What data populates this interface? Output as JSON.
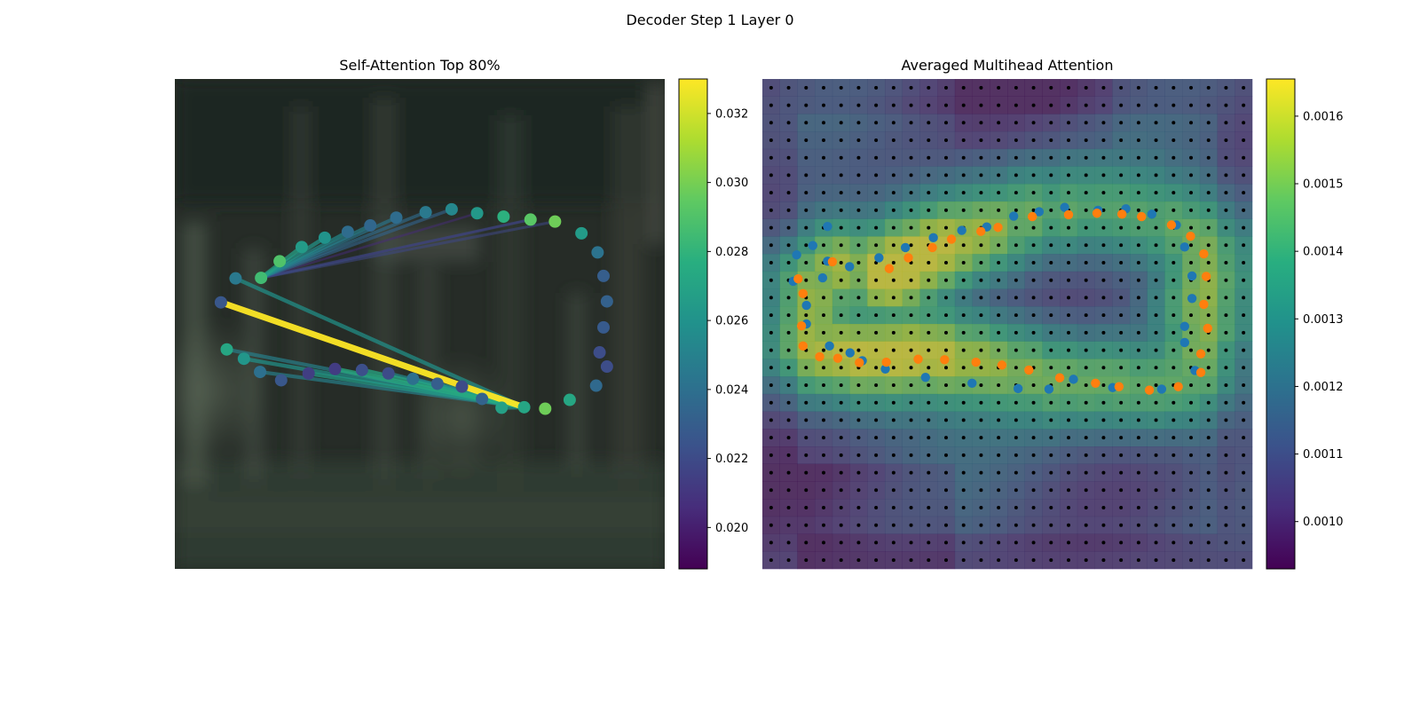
{
  "figure": {
    "title": "Decoder Step 1 Layer 0"
  },
  "chart_data": [
    {
      "type": "scatter",
      "title": "Self-Attention Top 80%",
      "background": "blurred dark photo (foliage / street scene)",
      "axes_visible": false,
      "colormap": "viridis",
      "colorbar": {
        "range": [
          0.0188,
          0.033
        ],
        "ticks": [
          0.02,
          0.022,
          0.024,
          0.026,
          0.028,
          0.03,
          0.032
        ],
        "tick_labels": [
          "0.020",
          "0.022",
          "0.024",
          "0.026",
          "0.028",
          "0.030",
          "0.032"
        ]
      },
      "points": [
        {
          "x": 0.124,
          "y": 0.407,
          "value": 0.0245
        },
        {
          "x": 0.094,
          "y": 0.456,
          "value": 0.0226
        },
        {
          "x": 0.106,
          "y": 0.552,
          "value": 0.0272
        },
        {
          "x": 0.141,
          "y": 0.571,
          "value": 0.0262
        },
        {
          "x": 0.174,
          "y": 0.598,
          "value": 0.024
        },
        {
          "x": 0.217,
          "y": 0.615,
          "value": 0.0226
        },
        {
          "x": 0.273,
          "y": 0.601,
          "value": 0.0214
        },
        {
          "x": 0.327,
          "y": 0.592,
          "value": 0.0213
        },
        {
          "x": 0.382,
          "y": 0.594,
          "value": 0.0222
        },
        {
          "x": 0.436,
          "y": 0.601,
          "value": 0.022
        },
        {
          "x": 0.486,
          "y": 0.612,
          "value": 0.024
        },
        {
          "x": 0.536,
          "y": 0.622,
          "value": 0.023
        },
        {
          "x": 0.586,
          "y": 0.628,
          "value": 0.022
        },
        {
          "x": 0.627,
          "y": 0.653,
          "value": 0.0233
        },
        {
          "x": 0.667,
          "y": 0.671,
          "value": 0.0268
        },
        {
          "x": 0.713,
          "y": 0.67,
          "value": 0.0271
        },
        {
          "x": 0.756,
          "y": 0.673,
          "value": 0.0298
        },
        {
          "x": 0.806,
          "y": 0.655,
          "value": 0.0272
        },
        {
          "x": 0.86,
          "y": 0.626,
          "value": 0.0236
        },
        {
          "x": 0.882,
          "y": 0.587,
          "value": 0.0221
        },
        {
          "x": 0.867,
          "y": 0.558,
          "value": 0.0221
        },
        {
          "x": 0.875,
          "y": 0.507,
          "value": 0.0228
        },
        {
          "x": 0.882,
          "y": 0.454,
          "value": 0.0232
        },
        {
          "x": 0.875,
          "y": 0.402,
          "value": 0.023
        },
        {
          "x": 0.863,
          "y": 0.354,
          "value": 0.0242
        },
        {
          "x": 0.83,
          "y": 0.315,
          "value": 0.0265
        },
        {
          "x": 0.776,
          "y": 0.291,
          "value": 0.0298
        },
        {
          "x": 0.726,
          "y": 0.287,
          "value": 0.0293
        },
        {
          "x": 0.671,
          "y": 0.281,
          "value": 0.0278
        },
        {
          "x": 0.617,
          "y": 0.274,
          "value": 0.0263
        },
        {
          "x": 0.565,
          "y": 0.266,
          "value": 0.0253
        },
        {
          "x": 0.512,
          "y": 0.272,
          "value": 0.0245
        },
        {
          "x": 0.452,
          "y": 0.283,
          "value": 0.0238
        },
        {
          "x": 0.399,
          "y": 0.299,
          "value": 0.0235
        },
        {
          "x": 0.353,
          "y": 0.312,
          "value": 0.0238
        },
        {
          "x": 0.306,
          "y": 0.324,
          "value": 0.026
        },
        {
          "x": 0.259,
          "y": 0.343,
          "value": 0.0265
        },
        {
          "x": 0.214,
          "y": 0.372,
          "value": 0.029
        },
        {
          "x": 0.176,
          "y": 0.406,
          "value": 0.0285
        }
      ],
      "edges": [
        {
          "from": 15,
          "to": 1,
          "value": 0.033
        },
        {
          "from": 15,
          "to": 0,
          "value": 0.026
        },
        {
          "from": 15,
          "to": 2,
          "value": 0.025
        },
        {
          "from": 15,
          "to": 3,
          "value": 0.026
        },
        {
          "from": 15,
          "to": 4,
          "value": 0.025
        },
        {
          "from": 15,
          "to": 6,
          "value": 0.0265
        },
        {
          "from": 15,
          "to": 7,
          "value": 0.0275
        },
        {
          "from": 15,
          "to": 8,
          "value": 0.0272
        },
        {
          "from": 15,
          "to": 9,
          "value": 0.0255
        },
        {
          "from": 15,
          "to": 10,
          "value": 0.0258
        },
        {
          "from": 15,
          "to": 11,
          "value": 0.0262
        },
        {
          "from": 15,
          "to": 12,
          "value": 0.0255
        },
        {
          "from": 15,
          "to": 13,
          "value": 0.0245
        },
        {
          "from": 15,
          "to": 14,
          "value": 0.0262
        },
        {
          "from": 38,
          "to": 36,
          "value": 0.0268
        },
        {
          "from": 38,
          "to": 35,
          "value": 0.0262
        },
        {
          "from": 38,
          "to": 34,
          "value": 0.0255
        },
        {
          "from": 38,
          "to": 33,
          "value": 0.025
        },
        {
          "from": 38,
          "to": 32,
          "value": 0.0244
        },
        {
          "from": 38,
          "to": 31,
          "value": 0.0238
        },
        {
          "from": 38,
          "to": 30,
          "value": 0.0233
        },
        {
          "from": 38,
          "to": 27,
          "value": 0.0222
        },
        {
          "from": 38,
          "to": 26,
          "value": 0.0218
        },
        {
          "from": 38,
          "to": 29,
          "value": 0.0205
        },
        {
          "from": 38,
          "to": 27,
          "value": 0.02
        }
      ]
    },
    {
      "type": "heatmap",
      "title": "Averaged Multihead Attention",
      "axes_visible": false,
      "colormap": "viridis",
      "grid": {
        "cols": 28,
        "rows": 28
      },
      "colorbar": {
        "range": [
          0.00093,
          0.001655
        ],
        "ticks": [
          0.001,
          0.0011,
          0.0012,
          0.0013,
          0.0014,
          0.0015,
          0.0016
        ],
        "tick_labels": [
          "0.0010",
          "0.0011",
          "0.0012",
          "0.0013",
          "0.0014",
          "0.0015",
          "0.0016"
        ]
      },
      "series": [
        {
          "color": "#1f77b4",
          "points": [
            [
              0.133,
              0.372
            ],
            [
              0.133,
              0.301
            ],
            [
              0.103,
              0.34
            ],
            [
              0.07,
              0.359
            ],
            [
              0.063,
              0.413
            ],
            [
              0.09,
              0.462
            ],
            [
              0.09,
              0.5
            ],
            [
              0.137,
              0.545
            ],
            [
              0.179,
              0.559
            ],
            [
              0.204,
              0.575
            ],
            [
              0.251,
              0.592
            ],
            [
              0.333,
              0.609
            ],
            [
              0.428,
              0.621
            ],
            [
              0.522,
              0.632
            ],
            [
              0.585,
              0.633
            ],
            [
              0.635,
              0.613
            ],
            [
              0.715,
              0.63
            ],
            [
              0.815,
              0.633
            ],
            [
              0.883,
              0.595
            ],
            [
              0.862,
              0.538
            ],
            [
              0.862,
              0.505
            ],
            [
              0.877,
              0.448
            ],
            [
              0.877,
              0.402
            ],
            [
              0.862,
              0.343
            ],
            [
              0.845,
              0.298
            ],
            [
              0.795,
              0.276
            ],
            [
              0.742,
              0.265
            ],
            [
              0.685,
              0.268
            ],
            [
              0.617,
              0.262
            ],
            [
              0.565,
              0.271
            ],
            [
              0.513,
              0.28
            ],
            [
              0.458,
              0.302
            ],
            [
              0.407,
              0.309
            ],
            [
              0.349,
              0.324
            ],
            [
              0.292,
              0.344
            ],
            [
              0.238,
              0.365
            ],
            [
              0.178,
              0.383
            ],
            [
              0.123,
              0.406
            ]
          ]
        },
        {
          "color": "#ff7f0e",
          "points": [
            [
              0.143,
              0.373
            ],
            [
              0.073,
              0.408
            ],
            [
              0.083,
              0.438
            ],
            [
              0.08,
              0.504
            ],
            [
              0.083,
              0.545
            ],
            [
              0.117,
              0.567
            ],
            [
              0.154,
              0.57
            ],
            [
              0.198,
              0.579
            ],
            [
              0.253,
              0.578
            ],
            [
              0.318,
              0.572
            ],
            [
              0.372,
              0.573
            ],
            [
              0.436,
              0.578
            ],
            [
              0.489,
              0.584
            ],
            [
              0.544,
              0.594
            ],
            [
              0.607,
              0.61
            ],
            [
              0.68,
              0.621
            ],
            [
              0.728,
              0.628
            ],
            [
              0.79,
              0.635
            ],
            [
              0.849,
              0.628
            ],
            [
              0.895,
              0.599
            ],
            [
              0.895,
              0.561
            ],
            [
              0.909,
              0.509
            ],
            [
              0.901,
              0.46
            ],
            [
              0.906,
              0.403
            ],
            [
              0.901,
              0.357
            ],
            [
              0.874,
              0.321
            ],
            [
              0.835,
              0.298
            ],
            [
              0.774,
              0.281
            ],
            [
              0.734,
              0.276
            ],
            [
              0.683,
              0.274
            ],
            [
              0.625,
              0.277
            ],
            [
              0.551,
              0.281
            ],
            [
              0.481,
              0.303
            ],
            [
              0.446,
              0.311
            ],
            [
              0.386,
              0.327
            ],
            [
              0.347,
              0.344
            ],
            [
              0.298,
              0.365
            ],
            [
              0.259,
              0.387
            ]
          ]
        }
      ]
    }
  ]
}
